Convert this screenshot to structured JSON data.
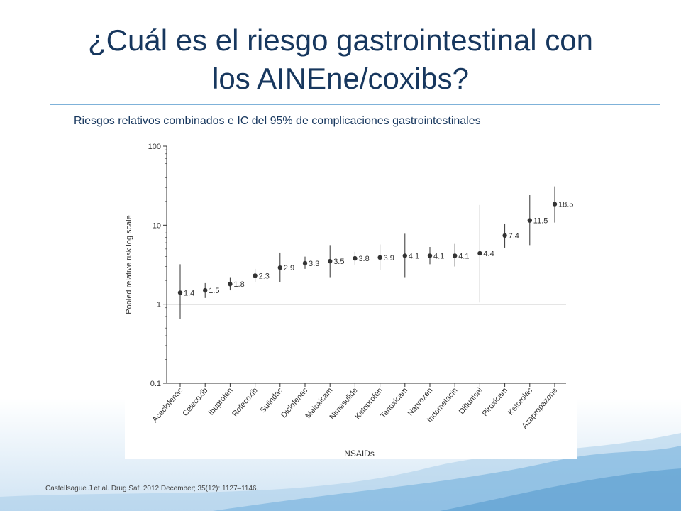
{
  "slide": {
    "title_line1": "¿Cuál es el riesgo gastrointestinal con",
    "title_line2": "los AINEne/coxibs?",
    "subtitle": "Riesgos relativos combinados e IC del 95% de complicaciones gastrointestinales",
    "footnote": "Castellsague J et al. Drug Saf. 2012 December; 35(12): 1127–1146."
  },
  "colors": {
    "title": "#17375e",
    "rule": "#7fb2d9",
    "marker": "#333333",
    "axis": "#333333"
  },
  "chart_data": {
    "type": "scatter",
    "title": "",
    "xlabel": "NSAIDs",
    "ylabel": "Pooled relative risk log scale",
    "yscale": "log",
    "ylim": [
      0.1,
      100
    ],
    "yticks": [
      0.1,
      1,
      10,
      100
    ],
    "yticklabels": [
      "0.1",
      "1",
      "10",
      "100"
    ],
    "reference_line": 1,
    "grid": false,
    "categories": [
      "Aceclofenac",
      "Celecoxib",
      "Ibuprofen",
      "Rofecoxib",
      "Sulindac",
      "Diclofenac",
      "Meloxicam",
      "Nimesulide",
      "Ketoprofen",
      "Tenoxicam",
      "Naproxen",
      "Indometacin",
      "Diflunisal",
      "Piroxicam",
      "Ketorolac",
      "Azapropazone"
    ],
    "values": [
      1.4,
      1.5,
      1.8,
      2.3,
      2.9,
      3.3,
      3.5,
      3.8,
      3.9,
      4.1,
      4.1,
      4.1,
      4.4,
      7.4,
      11.5,
      18.5
    ],
    "labels": [
      "1.4",
      "1.5",
      "1.8",
      "2.3",
      "2.9",
      "3.3",
      "3.5",
      "3.8",
      "3.9",
      "4.1",
      "4.1",
      "4.1",
      "4.4",
      "7.4",
      "11.5",
      "18.5"
    ],
    "ci_low": [
      0.65,
      1.2,
      1.5,
      1.9,
      1.9,
      2.8,
      2.2,
      3.1,
      2.7,
      2.2,
      3.2,
      3.0,
      1.05,
      5.2,
      5.6,
      10.8
    ],
    "ci_high": [
      3.2,
      1.85,
      2.2,
      2.8,
      4.5,
      4.0,
      5.6,
      4.6,
      5.7,
      7.8,
      5.3,
      5.8,
      18.0,
      10.5,
      24.0,
      31.0
    ]
  }
}
